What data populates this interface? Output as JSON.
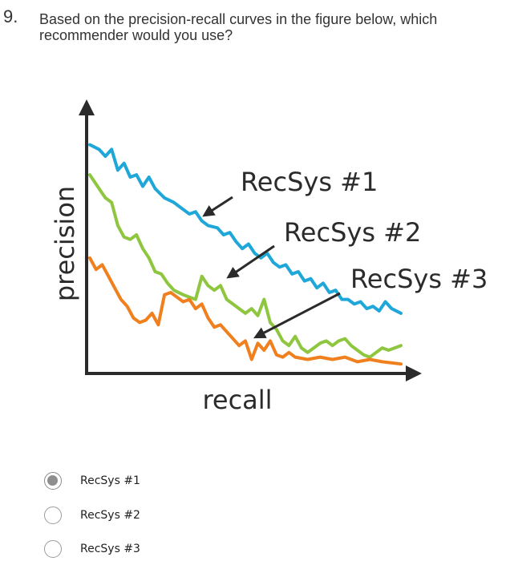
{
  "question": {
    "number": "9.",
    "text": "Based on the precision-recall curves in the figure below, which recommender would you use?"
  },
  "chart_data": {
    "type": "line",
    "xlabel": "recall",
    "ylabel": "precision",
    "grid": false,
    "legend": "direct labels with arrows",
    "xlim": [
      0,
      1
    ],
    "ylim": [
      0,
      1
    ],
    "series": [
      {
        "name": "RecSys #1",
        "color": "#1ea7d8",
        "x": [
          0.0,
          0.03,
          0.05,
          0.07,
          0.09,
          0.11,
          0.13,
          0.15,
          0.17,
          0.19,
          0.21,
          0.24,
          0.27,
          0.3,
          0.32,
          0.34,
          0.36,
          0.38,
          0.41,
          0.43,
          0.45,
          0.47,
          0.49,
          0.51,
          0.53,
          0.55,
          0.57,
          0.59,
          0.61,
          0.63,
          0.65,
          0.67,
          0.69,
          0.71,
          0.73,
          0.75,
          0.77,
          0.79,
          0.81,
          0.83,
          0.85,
          0.87,
          0.89,
          0.91,
          0.93,
          0.95,
          0.97,
          1.0
        ],
        "y": [
          0.97,
          0.95,
          0.92,
          0.95,
          0.86,
          0.89,
          0.83,
          0.84,
          0.79,
          0.83,
          0.78,
          0.74,
          0.72,
          0.69,
          0.67,
          0.68,
          0.64,
          0.62,
          0.61,
          0.58,
          0.59,
          0.55,
          0.52,
          0.54,
          0.5,
          0.48,
          0.5,
          0.46,
          0.44,
          0.45,
          0.41,
          0.42,
          0.38,
          0.39,
          0.35,
          0.37,
          0.33,
          0.34,
          0.3,
          0.3,
          0.28,
          0.29,
          0.26,
          0.27,
          0.25,
          0.29,
          0.26,
          0.24
        ]
      },
      {
        "name": "RecSys #2",
        "color": "#8ec63f",
        "x": [
          0.0,
          0.03,
          0.05,
          0.07,
          0.09,
          0.11,
          0.13,
          0.15,
          0.17,
          0.19,
          0.21,
          0.23,
          0.25,
          0.27,
          0.3,
          0.32,
          0.34,
          0.36,
          0.38,
          0.4,
          0.42,
          0.44,
          0.46,
          0.48,
          0.5,
          0.52,
          0.54,
          0.56,
          0.58,
          0.6,
          0.62,
          0.64,
          0.66,
          0.68,
          0.7,
          0.72,
          0.74,
          0.76,
          0.78,
          0.8,
          0.82,
          0.84,
          0.86,
          0.88,
          0.9,
          0.92,
          0.94,
          0.96,
          1.0
        ],
        "y": [
          0.84,
          0.78,
          0.74,
          0.72,
          0.62,
          0.57,
          0.56,
          0.58,
          0.52,
          0.48,
          0.42,
          0.41,
          0.37,
          0.34,
          0.32,
          0.31,
          0.3,
          0.4,
          0.36,
          0.34,
          0.36,
          0.3,
          0.28,
          0.26,
          0.24,
          0.26,
          0.23,
          0.3,
          0.2,
          0.17,
          0.12,
          0.1,
          0.14,
          0.09,
          0.07,
          0.09,
          0.11,
          0.12,
          0.1,
          0.12,
          0.13,
          0.1,
          0.08,
          0.06,
          0.05,
          0.07,
          0.09,
          0.08,
          0.1
        ]
      },
      {
        "name": "RecSys #3",
        "color": "#f07f1e",
        "x": [
          0.0,
          0.02,
          0.04,
          0.06,
          0.08,
          0.1,
          0.12,
          0.14,
          0.16,
          0.18,
          0.2,
          0.22,
          0.24,
          0.26,
          0.28,
          0.3,
          0.32,
          0.34,
          0.36,
          0.38,
          0.4,
          0.42,
          0.44,
          0.46,
          0.48,
          0.5,
          0.52,
          0.54,
          0.56,
          0.58,
          0.6,
          0.62,
          0.64,
          0.66,
          0.7,
          0.74,
          0.78,
          0.82,
          0.86,
          0.9,
          0.94,
          1.0
        ],
        "y": [
          0.48,
          0.43,
          0.45,
          0.4,
          0.35,
          0.3,
          0.27,
          0.22,
          0.2,
          0.21,
          0.24,
          0.19,
          0.32,
          0.33,
          0.31,
          0.29,
          0.3,
          0.26,
          0.28,
          0.22,
          0.18,
          0.19,
          0.16,
          0.13,
          0.1,
          0.12,
          0.04,
          0.11,
          0.08,
          0.12,
          0.06,
          0.05,
          0.07,
          0.05,
          0.04,
          0.05,
          0.04,
          0.05,
          0.03,
          0.04,
          0.03,
          0.02
        ]
      }
    ]
  },
  "options": [
    {
      "label": "RecSys #1",
      "selected": true
    },
    {
      "label": "RecSys #2",
      "selected": false
    },
    {
      "label": "RecSys #3",
      "selected": false
    }
  ]
}
